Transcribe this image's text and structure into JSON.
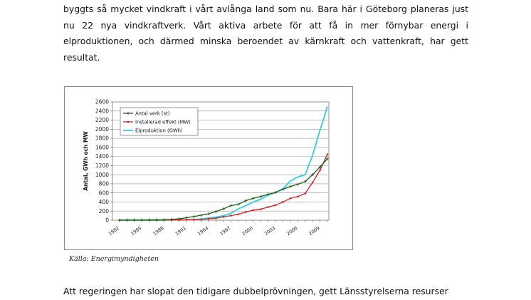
{
  "document": {
    "paragraph_top": "byggts så mycket vindkraft i vårt avlånga land som nu. Bara här i Göteborg planeras just nu 22 nya vindkraftverk. Vårt aktiva arbete för att få in mer förnybar energi i elproduktionen, och därmed minska beroendet av kärnkraft och vattenkraft, har gett resultat.",
    "caption": "Källa: Energimyndigheten",
    "paragraph_bottom": "Att regeringen har slopat den tidigare dubbelprövningen, gett Länsstyrelserna resurser"
  },
  "chart_data": {
    "type": "line",
    "title": "",
    "xlabel": "",
    "ylabel": "Antal, GWh och MW",
    "x": [
      1982,
      1983,
      1984,
      1985,
      1986,
      1987,
      1988,
      1989,
      1990,
      1991,
      1992,
      1993,
      1994,
      1995,
      1996,
      1997,
      1998,
      1999,
      2000,
      2001,
      2002,
      2003,
      2004,
      2005,
      2006,
      2007,
      2008,
      2009,
      2010
    ],
    "x_tick_labels": [
      "1982",
      "1985",
      "1988",
      "1991",
      "1994",
      "1997",
      "2000",
      "2003",
      "2006",
      "2009"
    ],
    "ylim": [
      0,
      2600
    ],
    "y_ticks": [
      0,
      200,
      400,
      600,
      800,
      1000,
      1200,
      1400,
      1600,
      1800,
      2000,
      2200,
      2400,
      2600
    ],
    "grid": true,
    "legend_position": "top-left",
    "series": [
      {
        "name": "Antal verk (st)",
        "color": "#1a5e1a",
        "marker": "plus",
        "values": [
          2,
          3,
          5,
          6,
          8,
          10,
          12,
          18,
          30,
          55,
          80,
          110,
          140,
          190,
          250,
          320,
          350,
          430,
          480,
          520,
          570,
          610,
          680,
          740,
          790,
          850,
          1000,
          1170,
          1350
        ]
      },
      {
        "name": "Installerad effekt (MW)",
        "color": "#d42020",
        "marker": "dot",
        "values": [
          0,
          0,
          0,
          1,
          1,
          1,
          2,
          4,
          6,
          10,
          15,
          20,
          30,
          45,
          75,
          100,
          130,
          180,
          220,
          240,
          290,
          330,
          400,
          480,
          520,
          590,
          830,
          1100,
          1450
        ]
      },
      {
        "name": "Elproduktion (GWh)",
        "color": "#33cde0",
        "marker": "none",
        "values": [
          0,
          0,
          0,
          0,
          0,
          0,
          2,
          4,
          6,
          8,
          15,
          25,
          50,
          70,
          100,
          150,
          250,
          320,
          400,
          460,
          550,
          610,
          690,
          860,
          950,
          1000,
          1430,
          1980,
          2500
        ]
      }
    ]
  }
}
